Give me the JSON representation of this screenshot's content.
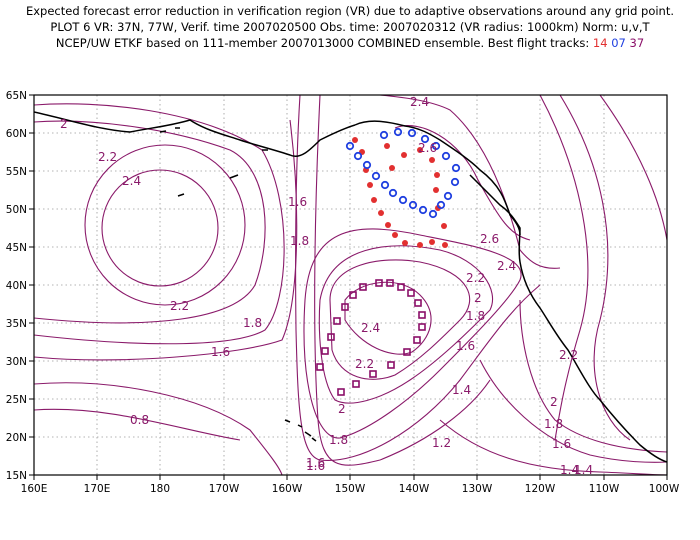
{
  "header": {
    "line1": "Expected forecast error reduction in verification region (VR) due to adaptive observations around any grid point.",
    "line2": "PLOT 6 VR: 37N, 77W, Verif. time 2007020500 Obs. time: 2007020312 (VR radius: 1000km) Norm: u,v,T",
    "line3_prefix": "NCEP/UW ETKF based on 111-member 2007013000 COMBINED ensemble.  Best flight tracks:",
    "track_a": "14",
    "track_b": "07",
    "track_c": "37"
  },
  "map": {
    "lon_range": [
      160,
      260
    ],
    "lat_range": [
      15,
      65
    ],
    "lon_ticks": [
      "160E",
      "170E",
      "180",
      "170W",
      "160W",
      "150W",
      "140W",
      "130W",
      "120W",
      "110W",
      "100W"
    ],
    "lat_ticks": [
      "65N",
      "60N",
      "55N",
      "50N",
      "45N",
      "40N",
      "35N",
      "30N",
      "25N",
      "20N",
      "15N"
    ],
    "grid": "dotted",
    "contour_color": "#8a1a6a",
    "contour_labels": [
      "2.4",
      "2.6",
      "2",
      "2.2",
      "2.4",
      "1.6",
      "1.8",
      "2.6",
      "2.4",
      "2.2",
      "2.2",
      "2",
      "1.8",
      "1.6",
      "2.4",
      "1.8",
      "1.6",
      "2.2",
      "2",
      "1.6",
      "1.4",
      "2.2",
      "2",
      "1.8",
      "1.6",
      "1.4",
      "0.8",
      "1.8",
      "1.6",
      "1.2",
      "1.4"
    ]
  },
  "tracks": {
    "colors": {
      "red": "#e23030",
      "blue": "#2040e0",
      "purple": "#8a0e68"
    }
  }
}
